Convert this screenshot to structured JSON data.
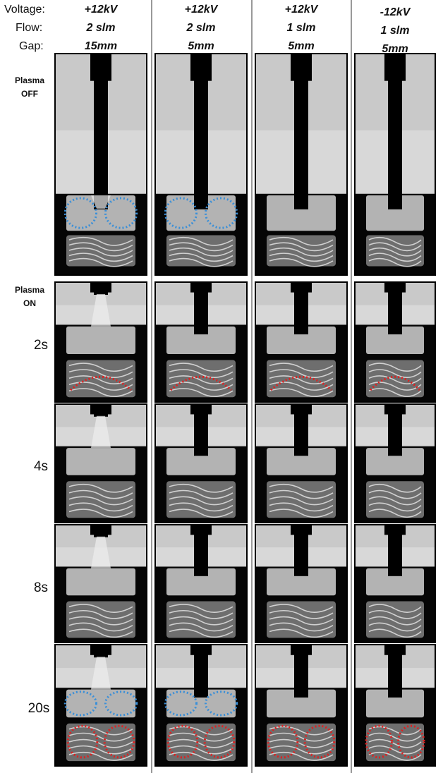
{
  "header_labels": [
    "Voltage:",
    "Flow:",
    "Gap:"
  ],
  "columns": [
    {
      "voltage": "+12kV",
      "flow": "2 slm",
      "gap": "15mm"
    },
    {
      "voltage": "+12kV",
      "flow": "2 slm",
      "gap": "5mm"
    },
    {
      "voltage": "+12kV",
      "flow": "1 slm",
      "gap": "5mm"
    },
    {
      "voltage": "-12kV",
      "flow": "1 slm",
      "gap": "5mm"
    }
  ],
  "rows": [
    {
      "label_lines": [
        "Plasma",
        "OFF"
      ]
    },
    {
      "label_lines": [
        "Plasma",
        "ON"
      ],
      "time": "2s"
    },
    {
      "time": "4s"
    },
    {
      "time": "8s"
    },
    {
      "time": "20s"
    }
  ]
}
